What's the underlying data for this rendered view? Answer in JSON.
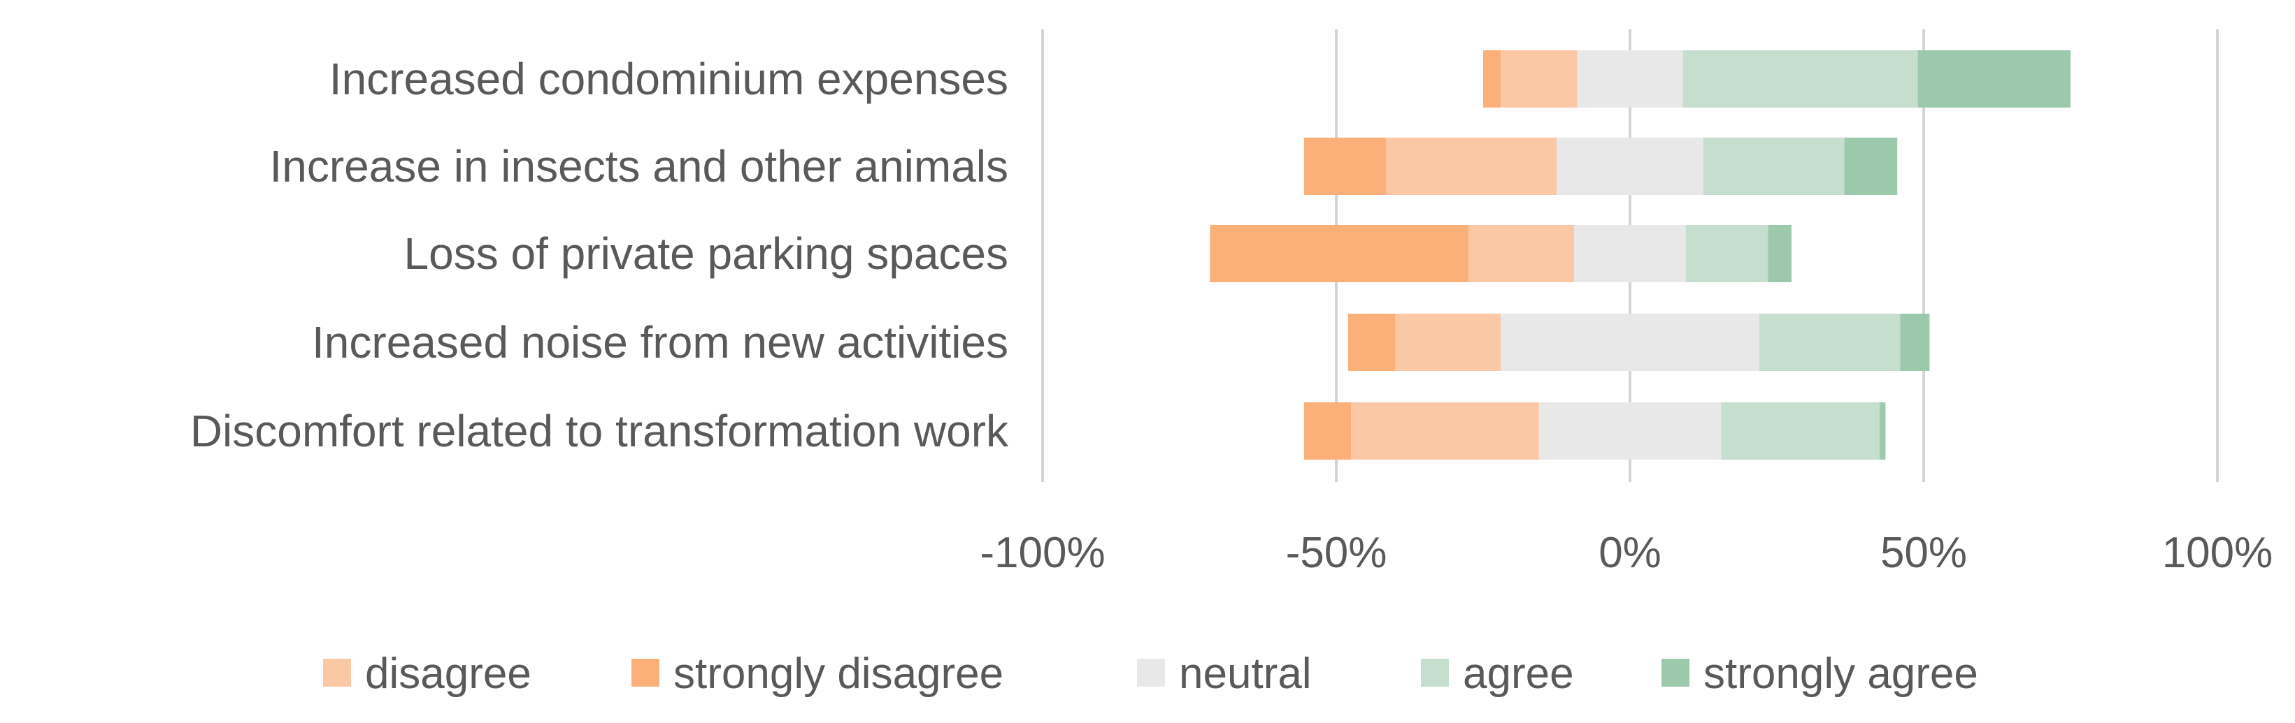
{
  "chart_data": {
    "type": "bar",
    "stacked": "diverging",
    "orientation": "horizontal",
    "categories": [
      "Increased condominium expenses",
      "Increase in insects and other animals",
      "Loss of private parking spaces",
      "Increased noise from new activities",
      "Discomfort related to transformation work"
    ],
    "series": [
      {
        "name": "disagree",
        "color": "#fbc8a6",
        "values": [
          13,
          29,
          18,
          18,
          32
        ]
      },
      {
        "name": "strongly disagree",
        "color": "#fbb07a",
        "values": [
          3,
          14,
          44,
          8,
          8
        ]
      },
      {
        "name": "neutral",
        "color": "#e8e8e8",
        "values": [
          18,
          25,
          19,
          44,
          31
        ]
      },
      {
        "name": "agree",
        "color": "#c5dece",
        "values": [
          40,
          24,
          14,
          24,
          27
        ]
      },
      {
        "name": "strongly agree",
        "color": "#9cc8ac",
        "values": [
          26,
          9,
          4,
          5,
          1
        ]
      }
    ],
    "negative_series": [
      "disagree",
      "strongly disagree"
    ],
    "neutral_series": "neutral",
    "xlim": [
      -100,
      100
    ],
    "xticks": [
      -100,
      -50,
      0,
      50,
      100
    ],
    "xtick_labels": [
      "-100%",
      "-50%",
      "0%",
      "50%",
      "100%"
    ],
    "grid": true,
    "legend_position": "bottom",
    "title": "",
    "xlabel": "",
    "ylabel": ""
  }
}
